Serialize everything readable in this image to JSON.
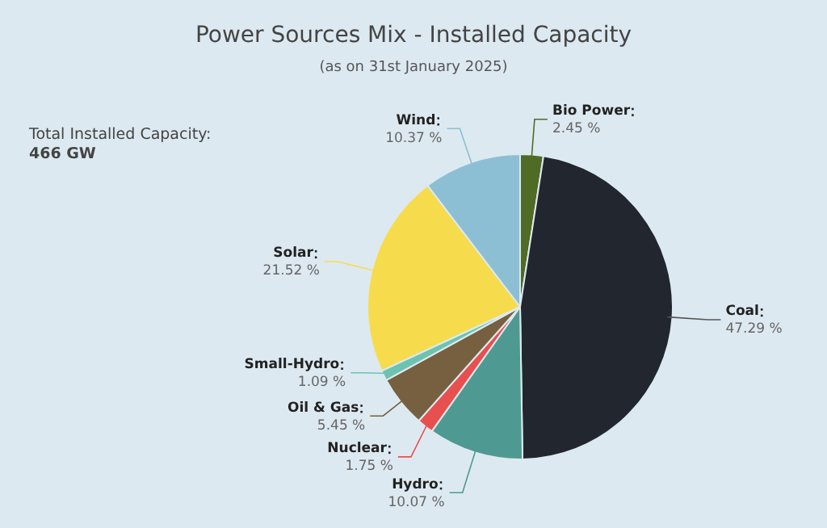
{
  "chart_data": {
    "type": "pie",
    "title": "Power Sources Mix - Installed Capacity",
    "subtitle": "(as on 31st January 2025)",
    "categories": [
      "Bio Power",
      "Coal",
      "Hydro",
      "Nuclear",
      "Oil & Gas",
      "Small-Hydro",
      "Solar",
      "Wind"
    ],
    "values": [
      2.45,
      47.29,
      10.07,
      1.75,
      5.45,
      1.09,
      21.52,
      10.37
    ],
    "value_labels": [
      "2.45 %",
      "47.29 %",
      "10.07 %",
      "1.75 %",
      "5.45 %",
      "1.09 %",
      "21.52 %",
      "10.37 %"
    ],
    "colors": [
      "#4f6b25",
      "#22262f",
      "#4e9a92",
      "#e8504f",
      "#76603f",
      "#6cc3b0",
      "#f6dc4c",
      "#8dbfd4"
    ],
    "annotations": [
      "Total Installed Capacity:",
      "466 GW"
    ]
  }
}
